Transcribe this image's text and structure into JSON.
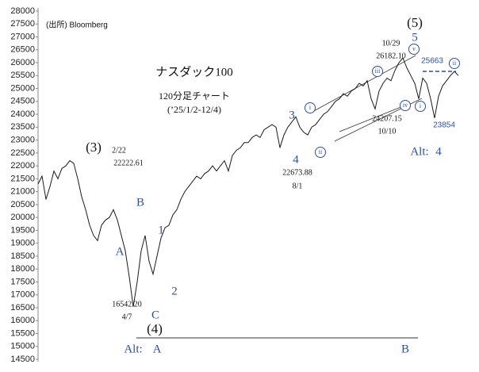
{
  "chart_data": {
    "type": "line",
    "color": "#1a1a1a",
    "ylim": [
      14500,
      28000
    ],
    "yticks": [
      14500,
      15000,
      15500,
      16000,
      16500,
      17000,
      17500,
      18000,
      18500,
      19000,
      19500,
      20000,
      20500,
      21000,
      21500,
      22000,
      22500,
      23000,
      23500,
      24000,
      24500,
      25000,
      25500,
      26000,
      26500,
      27000,
      27500,
      28000
    ],
    "values": [
      21300,
      21600,
      20700,
      21200,
      21800,
      21500,
      21900,
      22000,
      22200,
      22100,
      21500,
      20800,
      20300,
      19700,
      19300,
      19100,
      19700,
      19900,
      20000,
      20300,
      19900,
      19300,
      18700,
      17700,
      16542,
      17500,
      18700,
      19300,
      18300,
      17800,
      18500,
      19200,
      19600,
      19700,
      20100,
      20300,
      20700,
      21000,
      21200,
      21400,
      21600,
      21500,
      21700,
      21800,
      22000,
      21800,
      22000,
      22200,
      21800,
      22400,
      22600,
      22700,
      22900,
      22900,
      23100,
      23200,
      23100,
      23400,
      23500,
      23600,
      23500,
      22700,
      23200,
      23500,
      23700,
      23900,
      23500,
      23300,
      23200,
      23500,
      23600,
      23800,
      24000,
      24100,
      24300,
      24500,
      24600,
      24800,
      24700,
      24900,
      25000,
      25200,
      25100,
      25300,
      24600,
      24207,
      24900,
      25200,
      25400,
      25300,
      25700,
      26000,
      26182,
      25800,
      25500,
      25200,
      24600,
      25400,
      25200,
      24600,
      23854,
      24700,
      25100,
      25300,
      25500,
      25663,
      25500
    ],
    "reference_line": {
      "value": 25663,
      "label": "25663",
      "color": "#2e4fa0"
    },
    "annotations": [
      "(出所) Bloomberg",
      "ナスダック100",
      "120分足チャート",
      "(’25/1/2-12/4)",
      "(3)",
      "2/22",
      "22222.61",
      "A",
      "B",
      "1",
      "2",
      "C",
      "16542.20",
      "4/7",
      "(4)",
      "Alt:",
      "A",
      "B",
      "3",
      "4",
      "22673.88",
      "8/1",
      "(5)",
      "5",
      "10/29",
      "26182.10",
      "24207.15",
      "10/10",
      "Alt:",
      "4",
      "23854",
      "i",
      "ii",
      "iii",
      "iv",
      "v",
      "i",
      "ii"
    ]
  }
}
